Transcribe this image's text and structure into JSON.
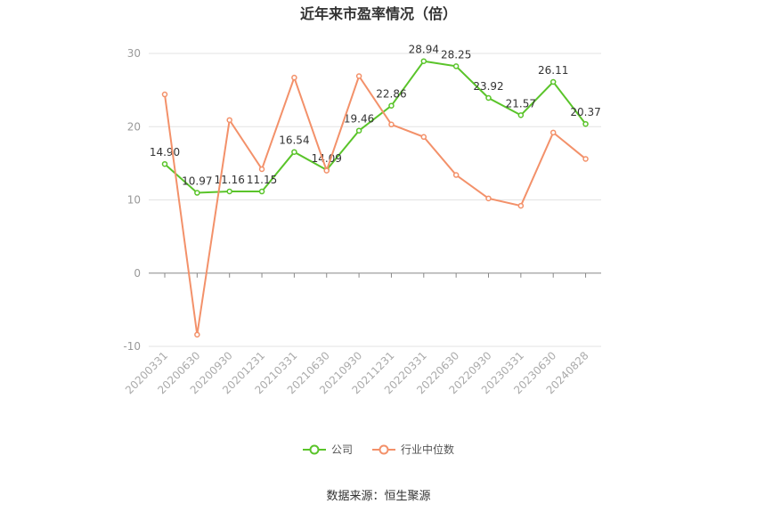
{
  "chart_data": {
    "type": "line",
    "title": "近年来市盈率情况（倍）",
    "categories": [
      "20200331",
      "20200630",
      "20200930",
      "20201231",
      "20210331",
      "20210630",
      "20210930",
      "20211231",
      "20220331",
      "20220630",
      "20220930",
      "20230331",
      "20230630",
      "20240828"
    ],
    "series": [
      {
        "name": "公司",
        "color": "#5ac42a",
        "labels": true,
        "values": [
          14.9,
          10.97,
          11.16,
          11.15,
          16.54,
          14.09,
          19.46,
          22.86,
          28.94,
          28.25,
          23.92,
          21.57,
          26.11,
          20.37
        ]
      },
      {
        "name": "行业中位数",
        "color": "#f3916a",
        "labels": false,
        "values": [
          24.4,
          -8.4,
          20.9,
          14.2,
          26.7,
          14.0,
          26.9,
          20.3,
          18.6,
          13.4,
          10.2,
          9.2,
          19.2,
          15.6
        ]
      }
    ],
    "yticks": [
      -10,
      0,
      10,
      20,
      30
    ],
    "ylim": [
      -10,
      30
    ],
    "grid": true,
    "legend_position": "bottom"
  },
  "source": "数据来源：恒生聚源"
}
